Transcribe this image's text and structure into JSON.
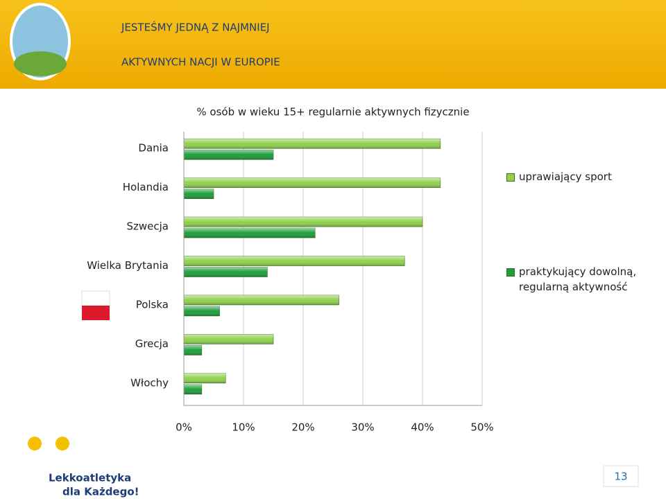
{
  "header": {
    "title_lines": [
      "JESTEŚMY JEDNĄ Z NAJMNIEJ",
      "AKTYWNYCH NACJI W EUROPIE"
    ]
  },
  "chart_data": {
    "type": "hbar",
    "title": "% osób w wieku 15+ regularnie aktywnych fizycznie",
    "categories": [
      "Dania",
      "Holandia",
      "Szwecja",
      "Wielka Brytania",
      "Polska",
      "Grecja",
      "Włochy"
    ],
    "series": [
      {
        "name": "uprawiający sport",
        "color": "#8fd14f",
        "values": [
          43,
          43,
          40,
          37,
          26,
          15,
          7
        ]
      },
      {
        "name": "praktykujący dowolną, regularną aktywność",
        "color": "#1f9e3c",
        "values": [
          15,
          5,
          22,
          14,
          6,
          3,
          3
        ]
      }
    ],
    "xlim": [
      0,
      50
    ],
    "xticks": [
      {
        "value": 0,
        "label": "0%"
      },
      {
        "value": 10,
        "label": "10%"
      },
      {
        "value": 20,
        "label": "20%"
      },
      {
        "value": 30,
        "label": "30%"
      },
      {
        "value": 40,
        "label": "40%"
      },
      {
        "value": 50,
        "label": "50%"
      }
    ],
    "grid": true
  },
  "footer": {
    "logo": "Lekkoatletyka",
    "logo_sub": "dla Każdego!",
    "page": "13"
  }
}
